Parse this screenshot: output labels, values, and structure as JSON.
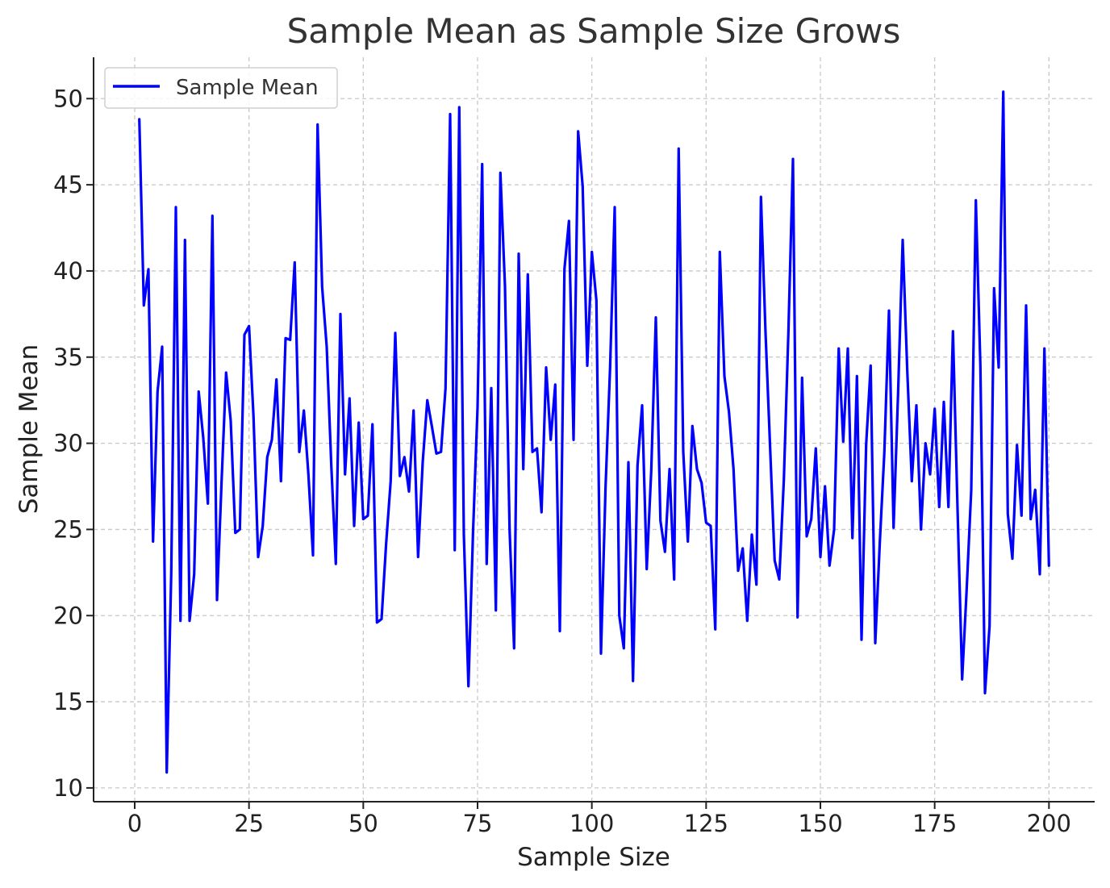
{
  "colors": {
    "series": "#0000ff",
    "grid": "#c8c8c8",
    "text": "#333333"
  },
  "chart_data": {
    "type": "line",
    "title": "Sample Mean as Sample Size Grows",
    "xlabel": "Sample Size",
    "ylabel": "Sample Mean",
    "xlim": [
      -9,
      210
    ],
    "ylim": [
      9.2,
      52.4
    ],
    "xticks": [
      0,
      25,
      50,
      75,
      100,
      125,
      150,
      175,
      200
    ],
    "yticks": [
      10,
      15,
      20,
      25,
      30,
      35,
      40,
      45,
      50
    ],
    "grid": true,
    "legend_position": "top-left",
    "series": [
      {
        "name": "Sample Mean",
        "color": "#0000ff",
        "x": [
          1,
          2,
          3,
          4,
          5,
          6,
          7,
          8,
          9,
          10,
          11,
          12,
          13,
          14,
          15,
          16,
          17,
          18,
          19,
          20,
          21,
          22,
          23,
          24,
          25,
          26,
          27,
          28,
          29,
          30,
          31,
          32,
          33,
          34,
          35,
          36,
          37,
          38,
          39,
          40,
          41,
          42,
          43,
          44,
          45,
          46,
          47,
          48,
          49,
          50,
          51,
          52,
          53,
          54,
          55,
          56,
          57,
          58,
          59,
          60,
          61,
          62,
          63,
          64,
          65,
          66,
          67,
          68,
          69,
          70,
          71,
          72,
          73,
          74,
          75,
          76,
          77,
          78,
          79,
          80,
          81,
          82,
          83,
          84,
          85,
          86,
          87,
          88,
          89,
          90,
          91,
          92,
          93,
          94,
          95,
          96,
          97,
          98,
          99,
          100,
          101,
          102,
          103,
          104,
          105,
          106,
          107,
          108,
          109,
          110,
          111,
          112,
          113,
          114,
          115,
          116,
          117,
          118,
          119,
          120,
          121,
          122,
          123,
          124,
          125,
          126,
          127,
          128,
          129,
          130,
          131,
          132,
          133,
          134,
          135,
          136,
          137,
          138,
          139,
          140,
          141,
          142,
          143,
          144,
          145,
          146,
          147,
          148,
          149,
          150,
          151,
          152,
          153,
          154,
          155,
          156,
          157,
          158,
          159,
          160,
          161,
          162,
          163,
          164,
          165,
          166,
          167,
          168,
          169,
          170,
          171,
          172,
          173,
          174,
          175,
          176,
          177,
          178,
          179,
          180,
          181,
          182,
          183,
          184,
          185,
          186,
          187,
          188,
          189,
          190,
          191,
          192,
          193,
          194,
          195,
          196,
          197,
          198,
          199,
          200
        ],
        "y": [
          48.8,
          38.0,
          40.1,
          24.3,
          33.0,
          35.6,
          10.9,
          22.5,
          43.7,
          19.7,
          41.8,
          19.7,
          22.4,
          33.0,
          30.3,
          26.5,
          43.2,
          20.9,
          27.8,
          34.1,
          31.3,
          24.8,
          25.0,
          36.3,
          36.8,
          31.5,
          23.4,
          25.2,
          29.2,
          30.2,
          33.7,
          27.8,
          36.1,
          36.0,
          40.5,
          29.5,
          31.9,
          28.2,
          23.5,
          48.5,
          39.1,
          35.6,
          28.7,
          23.0,
          37.5,
          28.2,
          32.6,
          25.2,
          31.2,
          25.6,
          25.8,
          31.1,
          19.6,
          19.8,
          24.2,
          27.8,
          36.4,
          28.1,
          29.2,
          27.2,
          31.9,
          23.4,
          28.9,
          32.5,
          31.0,
          29.4,
          29.5,
          33.2,
          49.1,
          23.8,
          49.5,
          24.7,
          15.9,
          24.7,
          32.1,
          46.2,
          23.0,
          33.2,
          20.3,
          45.7,
          39.1,
          25.0,
          18.1,
          41.0,
          28.5,
          39.8,
          29.5,
          29.7,
          26.0,
          34.4,
          30.2,
          33.4,
          19.1,
          40.1,
          42.9,
          30.2,
          48.1,
          44.9,
          34.5,
          41.1,
          38.3,
          17.8,
          27.5,
          34.4,
          43.7,
          20.0,
          18.1,
          28.9,
          16.2,
          28.7,
          32.2,
          22.7,
          28.4,
          37.3,
          25.5,
          23.7,
          28.5,
          22.1,
          47.1,
          29.5,
          24.3,
          31.0,
          28.5,
          27.7,
          25.4,
          25.2,
          19.2,
          41.1,
          33.9,
          31.8,
          28.5,
          22.6,
          23.9,
          19.7,
          24.7,
          21.8,
          44.3,
          36.4,
          29.7,
          23.2,
          22.1,
          27.9,
          36.4,
          46.5,
          19.9,
          33.8,
          24.6,
          25.6,
          29.7,
          23.4,
          27.5,
          22.9,
          25.0,
          35.5,
          30.1,
          35.5,
          24.5,
          33.9,
          18.6,
          29.9,
          34.5,
          18.4,
          24.3,
          29.5,
          37.7,
          25.1,
          32.9,
          41.8,
          34.2,
          27.8,
          32.2,
          25.0,
          30.0,
          28.2,
          32.0,
          26.3,
          32.4,
          26.3,
          36.5,
          26.2,
          16.3,
          21.5,
          27.3,
          44.1,
          34.5,
          15.5,
          19.4,
          39.0,
          34.4,
          50.4,
          25.9,
          23.3,
          29.9,
          25.8,
          38.0,
          25.6,
          27.3,
          22.4,
          35.5,
          22.9
        ]
      }
    ]
  }
}
